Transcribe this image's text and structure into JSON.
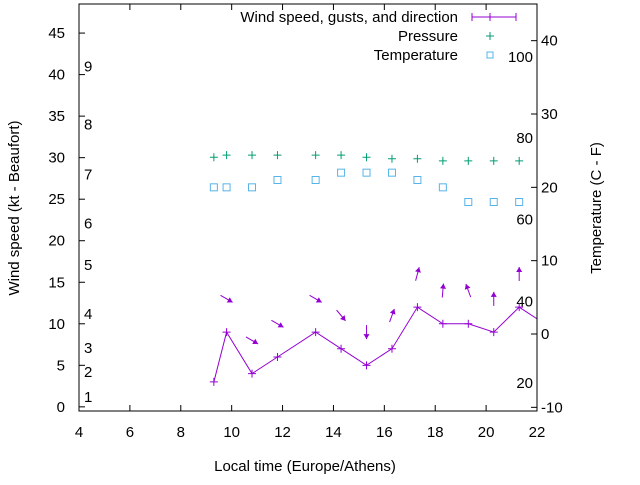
{
  "chart_data": {
    "type": "line",
    "title": "",
    "xlabel": "Local time (Europe/Athens)",
    "ylabel": "Wind speed (kt - Beaufort)",
    "y2label": "Temperature (C - F)",
    "xlim": [
      4,
      22
    ],
    "ylim": [
      -0.5,
      48.5
    ],
    "y2lim": [
      -10.5,
      45
    ],
    "xticks": [
      4,
      6,
      8,
      10,
      12,
      14,
      16,
      18,
      20,
      22
    ],
    "yticks": [
      0,
      5,
      10,
      15,
      20,
      25,
      30,
      35,
      40,
      45
    ],
    "y2ticks": [
      -10,
      0,
      10,
      20,
      30,
      40
    ],
    "beaufort_labels": [
      {
        "label": "1",
        "kt": 1.2
      },
      {
        "label": "2",
        "kt": 4.2
      },
      {
        "label": "3",
        "kt": 7.1
      },
      {
        "label": "4",
        "kt": 11.2
      },
      {
        "label": "5",
        "kt": 17.1
      },
      {
        "label": "6",
        "kt": 22.1
      },
      {
        "label": "7",
        "kt": 28
      },
      {
        "label": "8",
        "kt": 34
      },
      {
        "label": "9",
        "kt": 41
      }
    ],
    "fahrenheit_labels": [
      {
        "label": "100",
        "c": 37.8
      },
      {
        "label": "80",
        "c": 26.7
      },
      {
        "label": "60",
        "c": 15.6
      },
      {
        "label": "40",
        "c": 4.4
      },
      {
        "label": "20",
        "c": -6.7
      }
    ],
    "legend": {
      "position": "top-right",
      "entries": [
        "Wind speed, gusts, and direction",
        "Pressure",
        "Temperature"
      ]
    },
    "series": [
      {
        "name": "Wind speed, gusts, and direction",
        "color": "#9400d3",
        "axis": "left",
        "x": [
          9.3,
          9.8,
          10.8,
          11.8,
          13.3,
          14.3,
          15.3,
          16.3,
          17.3,
          18.3,
          19.3,
          20.3,
          21.3,
          22.3
        ],
        "values": [
          3,
          9,
          4,
          6,
          9,
          7,
          5,
          7,
          12,
          10,
          10,
          9,
          12,
          10
        ]
      },
      {
        "name": "Gust direction arrows",
        "color": "#9400d3",
        "axis": "left",
        "x": [
          9.8,
          10.8,
          11.8,
          13.3,
          14.3,
          15.3,
          16.3,
          17.3,
          18.3,
          19.3,
          20.3,
          21.3
        ],
        "gusts": [
          13,
          8,
          10,
          13,
          11,
          9,
          11,
          16,
          14,
          14,
          13,
          16
        ],
        "direction_from_deg": [
          300,
          300,
          300,
          300,
          320,
          0,
          200,
          195,
          185,
          160,
          180,
          180
        ]
      },
      {
        "name": "Pressure",
        "color": "#009e73",
        "axis": "right",
        "x": [
          9.3,
          9.8,
          10.8,
          11.8,
          13.3,
          14.3,
          15.3,
          16.3,
          17.3,
          18.3,
          19.3,
          20.3,
          21.3
        ],
        "values": [
          24.1,
          24.4,
          24.4,
          24.4,
          24.4,
          24.4,
          24.1,
          23.9,
          23.9,
          23.6,
          23.6,
          23.6,
          23.6
        ]
      },
      {
        "name": "Temperature",
        "color": "#56b4e9",
        "axis": "right",
        "x": [
          9.3,
          9.8,
          10.8,
          11.8,
          13.3,
          14.3,
          15.3,
          16.3,
          17.3,
          18.3,
          19.3,
          20.3,
          21.3
        ],
        "values": [
          20,
          20,
          20,
          21,
          21,
          22,
          22,
          22,
          21,
          20,
          18,
          18,
          18
        ]
      }
    ]
  }
}
